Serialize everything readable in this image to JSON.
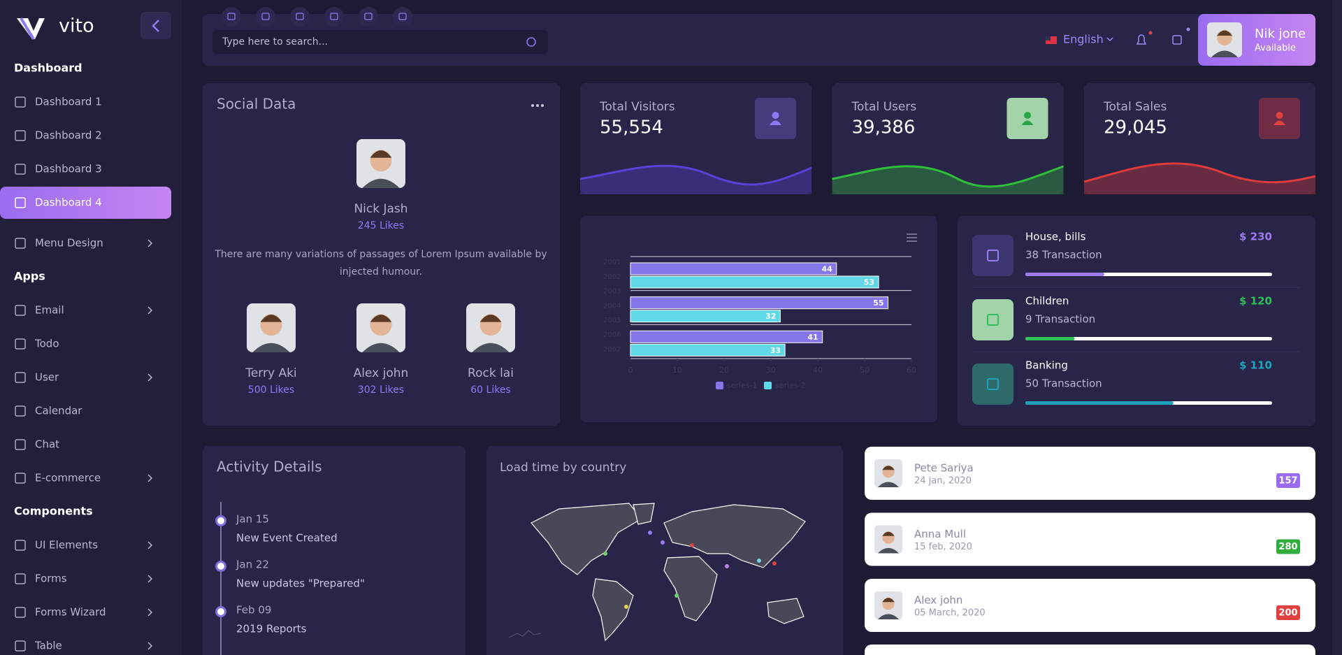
{
  "sidebar": {
    "brand": "vito",
    "sections": [
      {
        "title": "Dashboard",
        "items": [
          {
            "label": "Dashboard 1"
          },
          {
            "label": "Dashboard 2"
          },
          {
            "label": "Dashboard 3"
          },
          {
            "label": "Dashboard 4",
            "active": true
          },
          {
            "label": "Menu Design",
            "submenu": true
          }
        ]
      },
      {
        "title": "Apps",
        "items": [
          {
            "label": "Email",
            "submenu": true
          },
          {
            "label": "Todo"
          },
          {
            "label": "User",
            "submenu": true
          },
          {
            "label": "Calendar"
          },
          {
            "label": "Chat"
          },
          {
            "label": "E-commerce",
            "submenu": true
          }
        ]
      },
      {
        "title": "Components",
        "items": [
          {
            "label": "UI Elements",
            "submenu": true
          },
          {
            "label": "Forms",
            "submenu": true
          },
          {
            "label": "Forms Wizard",
            "submenu": true
          },
          {
            "label": "Table",
            "submenu": true
          }
        ]
      }
    ]
  },
  "header": {
    "search_placeholder": "Type here to search...",
    "language": "English",
    "user": {
      "name": "Nik jone",
      "status": "Available"
    }
  },
  "social": {
    "title": "Social Data",
    "featured": {
      "name": "Nick Jash",
      "likes": "245 Likes"
    },
    "description_lines": [
      "There are many variations of passages of Lorem Ipsum available by",
      "injected humour."
    ],
    "people": [
      {
        "name": "Terry Aki",
        "likes": "500 Likes"
      },
      {
        "name": "Alex john",
        "likes": "302 Likes"
      },
      {
        "name": "Rock lai",
        "likes": "60 Likes"
      }
    ]
  },
  "stats": [
    {
      "title": "Total Visitors",
      "value": "55,554",
      "color": "#5b40d8",
      "icon_bg": "#433d7c",
      "icon_color": "#8b7cf6"
    },
    {
      "title": "Total Users",
      "value": "39,386",
      "color": "#2fbf3a",
      "icon_bg": "#a3d3a8",
      "icon_color": "#27a844"
    },
    {
      "title": "Total Sales",
      "value": "29,045",
      "color": "#e03a3a",
      "icon_bg": "#6e2c45",
      "icon_color": "#e0413f"
    }
  ],
  "chart_data": {
    "type": "bar",
    "orientation": "horizontal",
    "categories": [
      null,
      null,
      null
    ],
    "ytick_labels": [
      "2001",
      "2002",
      "2003",
      "2004",
      "2005",
      "2006",
      "2007"
    ],
    "series": [
      {
        "name": "series-1",
        "color": "#8376e8",
        "values": [
          44,
          55,
          41
        ]
      },
      {
        "name": "series-2",
        "color": "#5fd8e8",
        "values": [
          53,
          32,
          33
        ]
      }
    ],
    "xlim": [
      0,
      60
    ],
    "xticks": [
      0,
      10,
      20,
      30,
      40,
      50,
      60
    ]
  },
  "transactions": [
    {
      "title": "House, bills",
      "amount": "$ 230",
      "count": "38 Transaction",
      "progress": 32,
      "color": "#9b7cf0",
      "icon_bg": "#3c3670"
    },
    {
      "title": "Children",
      "amount": "$ 120",
      "count": "9 Transaction",
      "progress": 20,
      "color": "#2fbf5a",
      "icon_bg": "#a3d3a8"
    },
    {
      "title": "Banking",
      "amount": "$ 110",
      "count": "50 Transaction",
      "progress": 60,
      "color": "#1fa3bd",
      "icon_bg": "#2f6a6a"
    }
  ],
  "activity": {
    "title": "Activity Details",
    "events": [
      {
        "date": "Jan 15",
        "text": "New Event Created"
      },
      {
        "date": "Jan 22",
        "text": "New updates \"Prepared\""
      },
      {
        "date": "Feb 09",
        "text": "2019 Reports"
      }
    ]
  },
  "map": {
    "title": "Load time by country"
  },
  "users": [
    {
      "name": "Pete Sariya",
      "date": "24 jan, 2020",
      "count": 157,
      "color": "#9b6cf0"
    },
    {
      "name": "Anna Mull",
      "date": "15 feb, 2020",
      "count": 280,
      "color": "#2fae3c"
    },
    {
      "name": "Alex john",
      "date": "05 March, 2020",
      "count": 200,
      "color": "#e0413f"
    }
  ]
}
